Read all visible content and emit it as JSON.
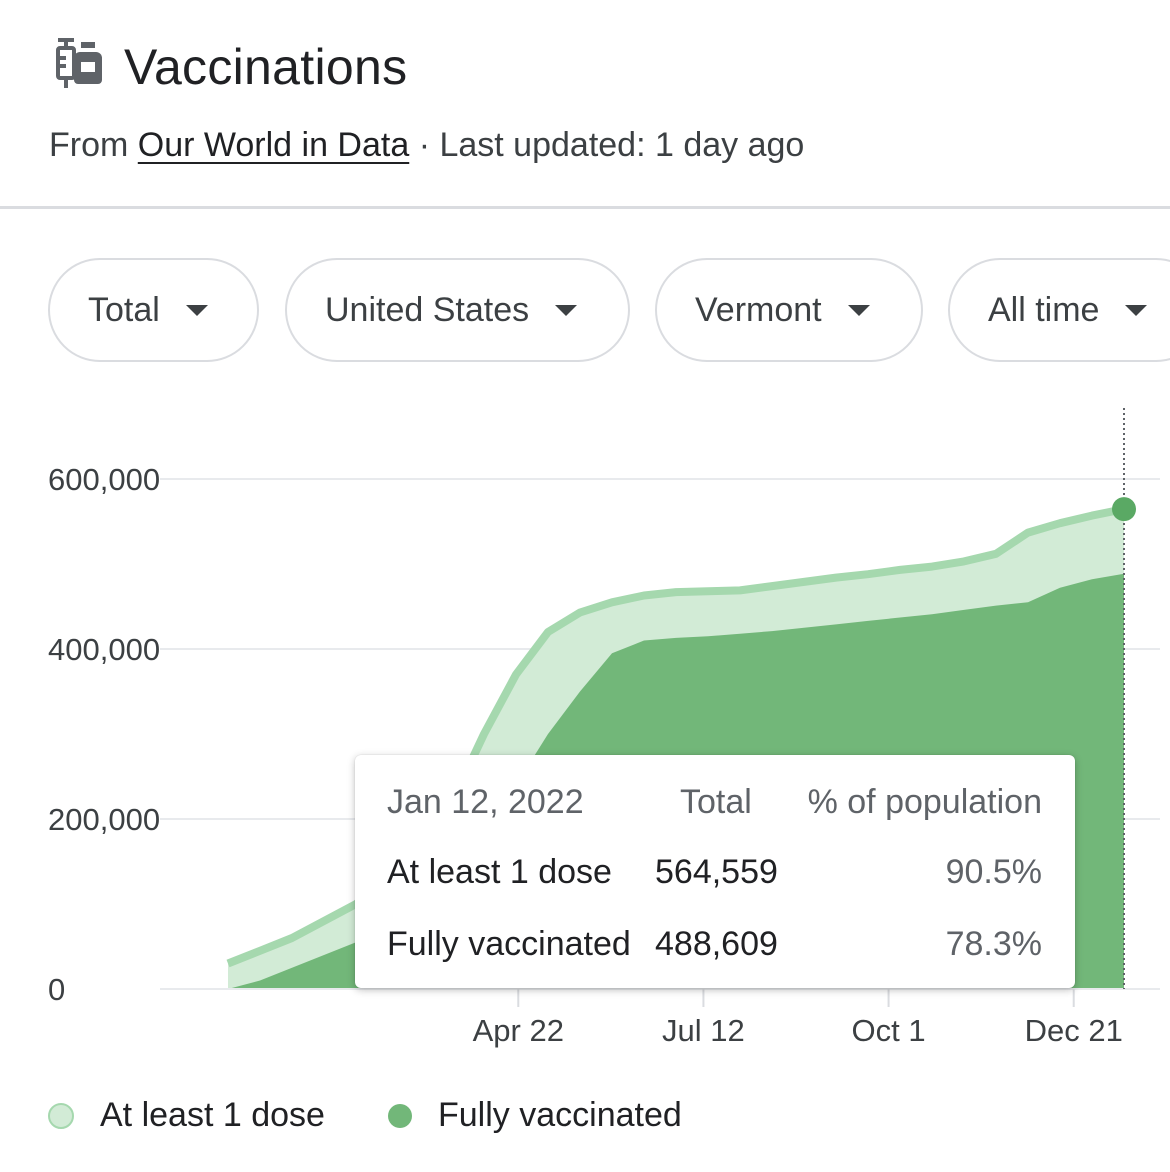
{
  "header": {
    "title": "Vaccinations",
    "icon": "vaccine-icon",
    "source_prefix": "From ",
    "source_link": "Our World in Data",
    "updated": " · Last updated: 1 day ago"
  },
  "filters": [
    {
      "label": "Total"
    },
    {
      "label": "United States"
    },
    {
      "label": "Vermont"
    },
    {
      "label": "All time"
    }
  ],
  "colors": {
    "at_least_one_fill": "#d2ebd6",
    "at_least_one_line": "#a5d8ae",
    "fully_fill": "#72b779",
    "marker": "#5aa964"
  },
  "tooltip": {
    "date": "Jan 12, 2022",
    "col_total": "Total",
    "col_pct": "% of population",
    "rows": [
      {
        "label": "At least 1 dose",
        "total": "564,559",
        "pct": "90.5%"
      },
      {
        "label": "Fully vaccinated",
        "total": "488,609",
        "pct": "78.3%"
      }
    ]
  },
  "chart_data": {
    "type": "area",
    "title": "",
    "xlabel": "",
    "ylabel": "",
    "ylim": [
      0,
      600000
    ],
    "yticks": [
      0,
      200000,
      400000,
      600000
    ],
    "ytick_labels": [
      "0",
      "200,000",
      "400,000",
      "600,000"
    ],
    "xlim": [
      "2020-12-16",
      "2022-01-12"
    ],
    "xticks": [
      "2021-04-22",
      "2021-07-12",
      "2021-10-01",
      "2021-12-21"
    ],
    "xtick_labels": [
      "Apr 22",
      "Jul 12",
      "Oct 1",
      "Dec 21"
    ],
    "grid": true,
    "legend_position": "bottom",
    "series": [
      {
        "name": "At least 1 dose",
        "x": [
          "2020-12-16",
          "2020-12-30",
          "2021-01-13",
          "2021-01-27",
          "2021-02-10",
          "2021-02-24",
          "2021-03-10",
          "2021-03-24",
          "2021-04-07",
          "2021-04-21",
          "2021-05-05",
          "2021-05-19",
          "2021-06-02",
          "2021-06-16",
          "2021-06-30",
          "2021-07-14",
          "2021-07-28",
          "2021-08-11",
          "2021-08-25",
          "2021-09-08",
          "2021-09-22",
          "2021-10-06",
          "2021-10-20",
          "2021-11-03",
          "2021-11-17",
          "2021-12-01",
          "2021-12-15",
          "2021-12-29",
          "2022-01-12"
        ],
        "values": [
          30000,
          45000,
          60000,
          80000,
          100000,
          125000,
          165000,
          220000,
          300000,
          370000,
          420000,
          443000,
          455000,
          463000,
          467000,
          468000,
          469000,
          474000,
          479000,
          484000,
          488000,
          493000,
          497000,
          503000,
          512000,
          537000,
          548000,
          557000,
          564559
        ]
      },
      {
        "name": "Fully vaccinated",
        "x": [
          "2020-12-16",
          "2020-12-30",
          "2021-01-13",
          "2021-01-27",
          "2021-02-10",
          "2021-02-24",
          "2021-03-10",
          "2021-03-24",
          "2021-04-07",
          "2021-04-21",
          "2021-05-05",
          "2021-05-19",
          "2021-06-02",
          "2021-06-16",
          "2021-06-30",
          "2021-07-14",
          "2021-07-28",
          "2021-08-11",
          "2021-08-25",
          "2021-09-08",
          "2021-09-22",
          "2021-10-06",
          "2021-10-20",
          "2021-11-03",
          "2021-11-17",
          "2021-12-01",
          "2021-12-15",
          "2021-12-29",
          "2022-01-12"
        ],
        "values": [
          0,
          10000,
          25000,
          40000,
          55000,
          70000,
          95000,
          130000,
          180000,
          240000,
          300000,
          350000,
          395000,
          410000,
          413000,
          415000,
          418000,
          421000,
          425000,
          429000,
          433000,
          437000,
          441000,
          446000,
          451000,
          455000,
          472000,
          482000,
          488609
        ]
      }
    ]
  },
  "legend": {
    "items": [
      "At least 1 dose",
      "Fully vaccinated"
    ]
  }
}
